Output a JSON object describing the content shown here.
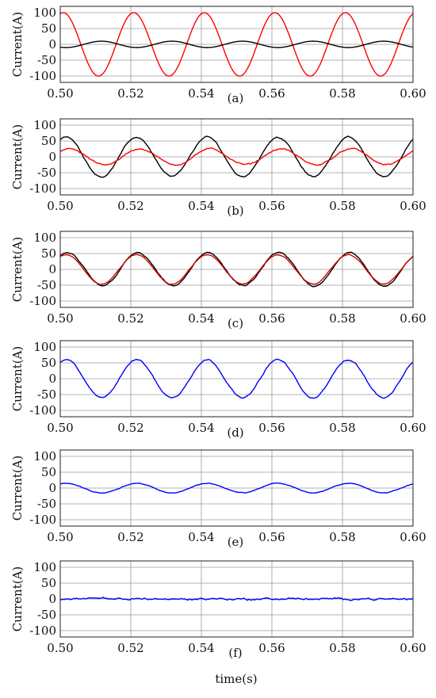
{
  "chart_data": [
    {
      "type": "line",
      "panel_label": "(a)",
      "ylabel": "Current(A)",
      "xlim": [
        0.5,
        0.6
      ],
      "ylim": [
        -120,
        120
      ],
      "xticks": [
        "0.50",
        "0.52",
        "0.54",
        "0.56",
        "0.58",
        "0.60"
      ],
      "yticks": [
        "100",
        "50",
        "0",
        "-50",
        "-100"
      ],
      "grid": true,
      "series": [
        {
          "color": "#ff0000",
          "frequency_hz": 50,
          "amplitude": 100,
          "phase_deg": 75,
          "noise": 0
        },
        {
          "color": "#000000",
          "frequency_hz": 50,
          "amplitude": 10,
          "phase_deg": -120,
          "noise": 0
        }
      ]
    },
    {
      "type": "line",
      "panel_label": "(b)",
      "ylabel": "Current(A)",
      "xlim": [
        0.5,
        0.6
      ],
      "ylim": [
        -120,
        120
      ],
      "xticks": [
        "0.50",
        "0.52",
        "0.54",
        "0.56",
        "0.58",
        "0.60"
      ],
      "yticks": [
        "100",
        "50",
        "0",
        "-50",
        "-100"
      ],
      "grid": true,
      "series": [
        {
          "color": "#000000",
          "frequency_hz": 50,
          "amplitude": 62,
          "phase_deg": 60,
          "noise": 2
        },
        {
          "color": "#ff0000",
          "frequency_hz": 50,
          "amplitude": 25,
          "phase_deg": 45,
          "noise": 2
        }
      ]
    },
    {
      "type": "line",
      "panel_label": "(c)",
      "ylabel": "Current(A)",
      "xlim": [
        0.5,
        0.6
      ],
      "ylim": [
        -120,
        120
      ],
      "xticks": [
        "0.50",
        "0.52",
        "0.54",
        "0.56",
        "0.58",
        "0.60"
      ],
      "yticks": [
        "100",
        "50",
        "0",
        "-50",
        "-100"
      ],
      "grid": true,
      "series": [
        {
          "color": "#000000",
          "frequency_hz": 50,
          "amplitude": 52,
          "phase_deg": 55,
          "noise": 2
        },
        {
          "color": "#d40000",
          "frequency_hz": 50,
          "amplitude": 46,
          "phase_deg": 60,
          "noise": 1
        }
      ]
    },
    {
      "type": "line",
      "panel_label": "(d)",
      "ylabel": "Current(A)",
      "xlim": [
        0.5,
        0.6
      ],
      "ylim": [
        -120,
        120
      ],
      "xticks": [
        "0.50",
        "0.52",
        "0.54",
        "0.56",
        "0.58",
        "0.60"
      ],
      "yticks": [
        "100",
        "50",
        "0",
        "-50",
        "-100"
      ],
      "grid": true,
      "series": [
        {
          "color": "#0000ff",
          "frequency_hz": 50,
          "amplitude": 60,
          "phase_deg": 60,
          "noise": 2
        }
      ]
    },
    {
      "type": "line",
      "panel_label": "(e)",
      "ylabel": "Current(A)",
      "xlim": [
        0.5,
        0.6
      ],
      "ylim": [
        -120,
        120
      ],
      "xticks": [
        "0.50",
        "0.52",
        "0.54",
        "0.56",
        "0.58",
        "0.60"
      ],
      "yticks": [
        "100",
        "50",
        "0",
        "-50",
        "-100"
      ],
      "grid": true,
      "series": [
        {
          "color": "#0000ff",
          "frequency_hz": 50,
          "amplitude": 15,
          "phase_deg": 60,
          "noise": 1
        }
      ]
    },
    {
      "type": "line",
      "panel_label": "(f)",
      "ylabel": "Current(A)",
      "xlabel": "time(s)",
      "xlim": [
        0.5,
        0.6
      ],
      "ylim": [
        -120,
        120
      ],
      "xticks": [
        "0.50",
        "0.52",
        "0.54",
        "0.56",
        "0.58",
        "0.60"
      ],
      "yticks": [
        "100",
        "50",
        "0",
        "-50",
        "-100"
      ],
      "grid": true,
      "series": [
        {
          "color": "#0000ff",
          "frequency_hz": 50,
          "amplitude": 1,
          "phase_deg": 0,
          "noise": 3
        }
      ]
    }
  ]
}
